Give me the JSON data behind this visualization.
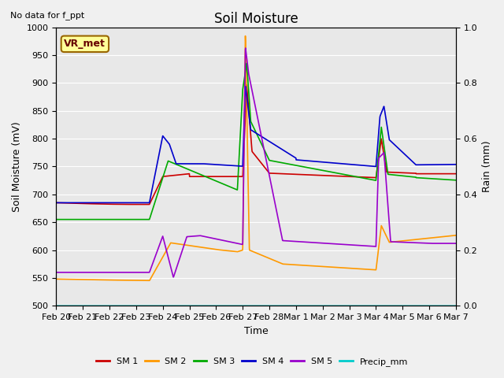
{
  "title": "Soil Moisture",
  "subtitle": "No data for f_ppt",
  "xlabel": "Time",
  "ylabel_left": "Soil Moisture (mV)",
  "ylabel_right": "Rain (mm)",
  "annotation": "VR_met",
  "ylim_left": [
    500,
    1000
  ],
  "ylim_right": [
    0.0,
    1.0
  ],
  "yticks_left": [
    500,
    550,
    600,
    650,
    700,
    750,
    800,
    850,
    900,
    950,
    1000
  ],
  "yticks_right": [
    0.0,
    0.2,
    0.4,
    0.6,
    0.8,
    1.0
  ],
  "xtick_labels": [
    "Feb 20",
    "Feb 21",
    "Feb 22",
    "Feb 23",
    "Feb 24",
    "Feb 25",
    "Feb 26",
    "Feb 27",
    "Feb 28",
    "Mar 1",
    "Mar 2",
    "Mar 3",
    "Mar 4",
    "Mar 5",
    "Mar 6",
    "Mar 7"
  ],
  "background_color": "#e8e8e8",
  "grid_color": "#ffffff",
  "colors": {
    "SM1": "#cc0000",
    "SM2": "#ff9900",
    "SM3": "#00aa00",
    "SM4": "#0000cc",
    "SM5": "#9900cc",
    "Precip": "#00cccc"
  },
  "legend_labels": [
    "SM 1",
    "SM 2",
    "SM 3",
    "SM 4",
    "SM 5",
    "Precip_mm"
  ]
}
